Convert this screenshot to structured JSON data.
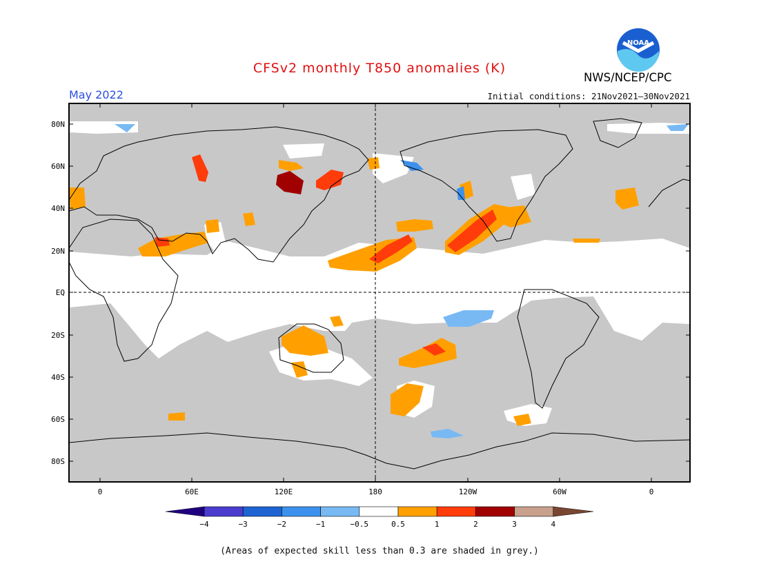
{
  "header": {
    "title": "CFSv2 monthly T850 anomalies (K)",
    "month": "May 2022",
    "initial_conditions": "Initial conditions: 21Nov2021–30Nov2021",
    "agency": "NWS/NCEP/CPC",
    "logo_text": "NOAA"
  },
  "axes": {
    "lat_labels": [
      "80N",
      "60N",
      "40N",
      "20N",
      "EQ",
      "20S",
      "40S",
      "60S",
      "80S"
    ],
    "lon_labels": [
      "0",
      "60E",
      "120E",
      "180",
      "120W",
      "60W",
      "0"
    ]
  },
  "colorbar": {
    "labels": [
      "−4",
      "−3",
      "−2",
      "−1",
      "−0.5",
      "0.5",
      "1",
      "2",
      "3",
      "4"
    ],
    "colors": [
      "#1f0080",
      "#4b3ccf",
      "#1e64d2",
      "#3c91ec",
      "#78b9f4",
      "#ffffff",
      "#ffa000",
      "#ff3c0a",
      "#a00000",
      "#c8a08c",
      "#7a4632"
    ]
  },
  "footnote": "(Areas of expected skill less than 0.3 are shaded in grey.)",
  "colors": {
    "grey_mask": "#c8c8c8",
    "orange": "#ffa000",
    "red": "#ff3c0a",
    "dark_red": "#a00000",
    "light_blue": "#78b9f4",
    "blue": "#3c91ec"
  }
}
